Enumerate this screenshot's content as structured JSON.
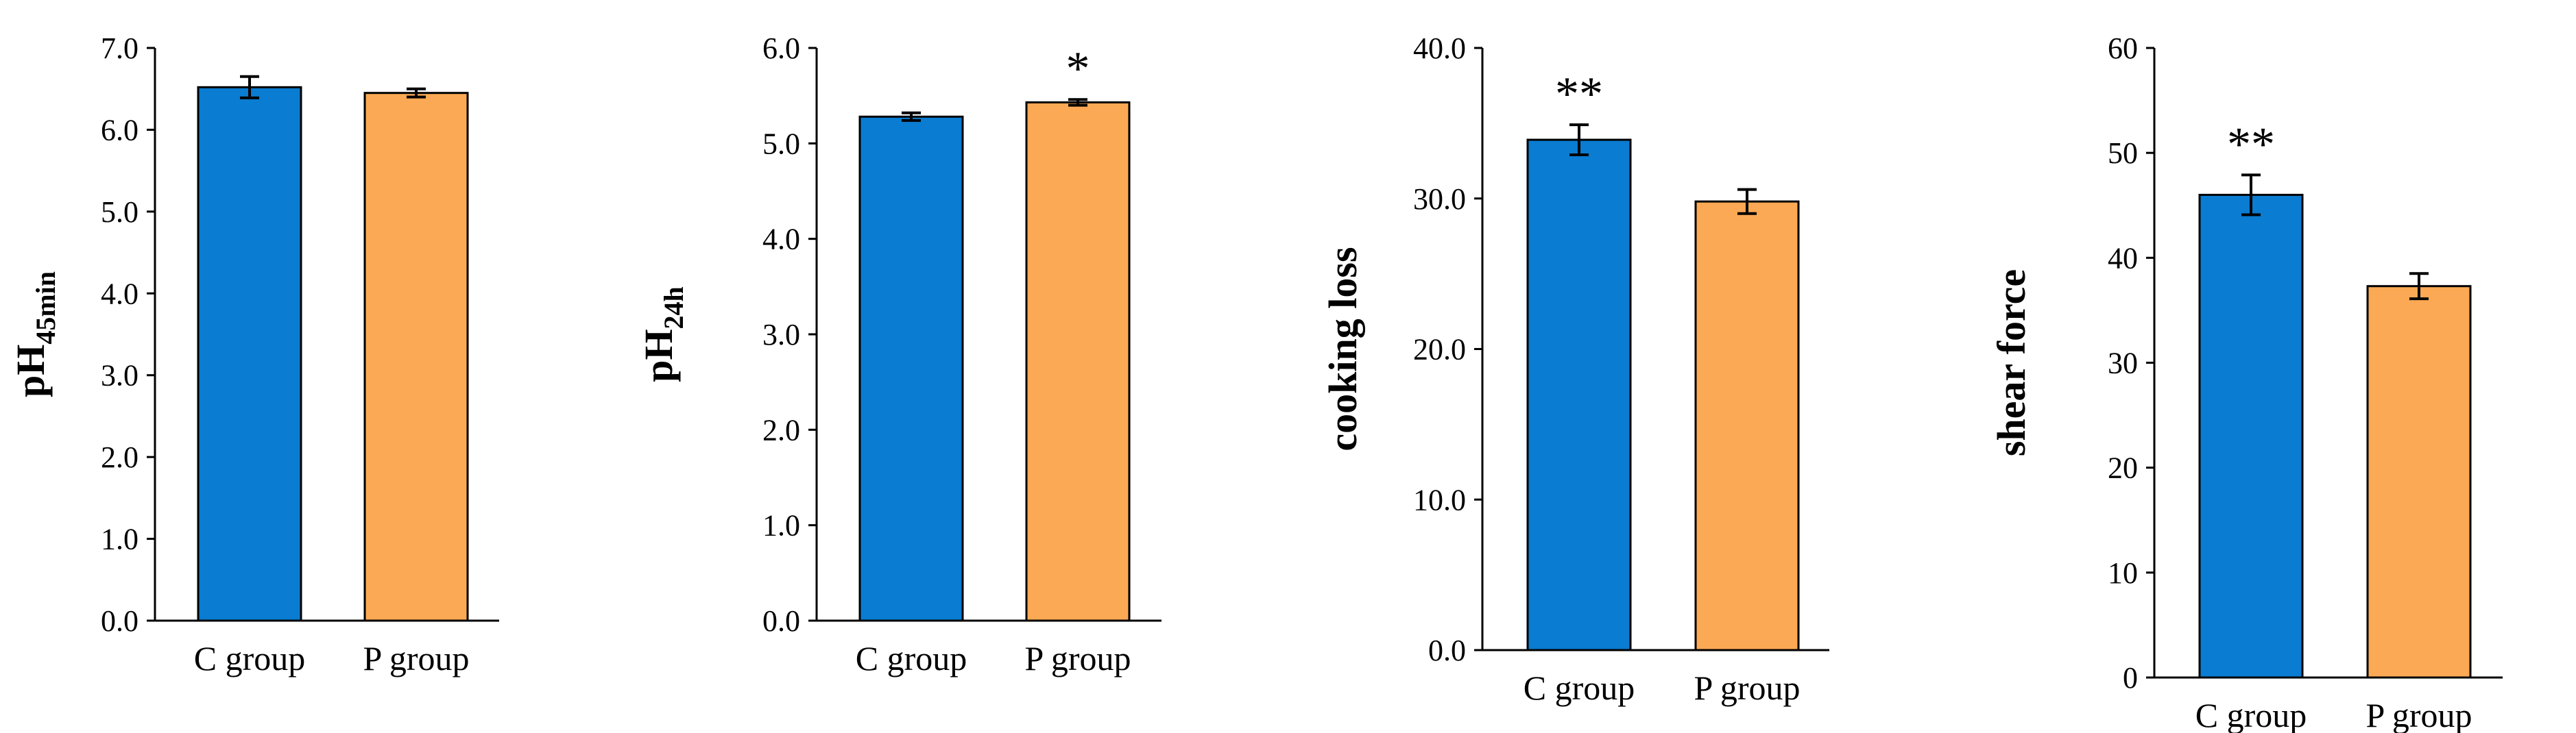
{
  "colors": {
    "c_group": "#0a7cd1",
    "p_group": "#fba954",
    "axis": "#000000"
  },
  "chart_data": [
    {
      "type": "bar",
      "ylabel": "pH",
      "ylabel_sub": "45min",
      "categories": [
        "C group",
        "P group"
      ],
      "values": [
        6.52,
        6.45
      ],
      "errors": [
        0.13,
        0.05
      ],
      "significance": [
        "",
        ""
      ],
      "ylim": [
        0,
        7
      ],
      "ticks": [
        "0.0",
        "1.0",
        "2.0",
        "3.0",
        "4.0",
        "5.0",
        "6.0",
        "7.0"
      ]
    },
    {
      "type": "bar",
      "ylabel": "pH",
      "ylabel_sub": "24h",
      "categories": [
        "C group",
        "P group"
      ],
      "values": [
        5.28,
        5.43
      ],
      "errors": [
        0.04,
        0.03
      ],
      "significance": [
        "",
        "*"
      ],
      "ylim": [
        0,
        6
      ],
      "ticks": [
        "0.0",
        "1.0",
        "2.0",
        "3.0",
        "4.0",
        "5.0",
        "6.0"
      ]
    },
    {
      "type": "bar",
      "ylabel": "cooking loss",
      "ylabel_sub": "",
      "categories": [
        "C group",
        "P group"
      ],
      "values": [
        33.9,
        29.8
      ],
      "errors": [
        1.0,
        0.8
      ],
      "significance": [
        "**",
        ""
      ],
      "ylim": [
        0,
        40
      ],
      "ticks": [
        "0.0",
        "10.0",
        "20.0",
        "30.0",
        "40.0"
      ]
    },
    {
      "type": "bar",
      "ylabel": "shear force",
      "ylabel_sub": "",
      "categories": [
        "C group",
        "P group"
      ],
      "values": [
        46.0,
        37.3
      ],
      "errors": [
        1.9,
        1.2
      ],
      "significance": [
        "**",
        ""
      ],
      "ylim": [
        0,
        60
      ],
      "ticks": [
        "0",
        "10",
        "20",
        "30",
        "40",
        "50",
        "60"
      ]
    }
  ]
}
